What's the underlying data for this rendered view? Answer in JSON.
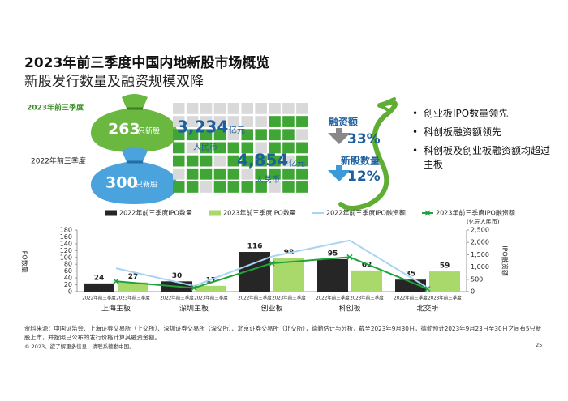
{
  "title": "2023年前三季度中国内地新股市场概览",
  "subtitle": "新股发行数量及融资规模双降",
  "infographic": {
    "period_2023": "2023年前三季度",
    "period_2022": "2022年前三季度",
    "count_2023": "263",
    "count_2022": "300",
    "count_unit": "只新股",
    "amount_2023": "3,234",
    "amount_2022": "4,854",
    "amount_unit": "亿元",
    "currency": "人民币",
    "amount_change_label": "融资额",
    "amount_change": "33%",
    "count_change_label": "新股数量",
    "count_change": "12%"
  },
  "highlights": [
    "创业板IPO数量领先",
    "科创板融资额领先",
    "科创板及创业板融资额均超过主板"
  ],
  "chart_data": {
    "type": "bar-line",
    "categories": [
      "上海主板",
      "深圳主板",
      "创业板",
      "科创板",
      "北交所"
    ],
    "period_labels": [
      "2022年前三季度",
      "2023年前三季度"
    ],
    "series": [
      {
        "name": "2022年前三季度IPO数量",
        "type": "bar",
        "color": "#262626",
        "values": [
          24,
          30,
          116,
          95,
          35
        ]
      },
      {
        "name": "2023年前三季度IPO数量",
        "type": "bar",
        "color": "#a9d96a",
        "values": [
          27,
          17,
          98,
          62,
          59
        ]
      },
      {
        "name": "2022年前三季度IPO融资额",
        "type": "line",
        "axis": "y2",
        "color": "#a9d3f2",
        "values": [
          950,
          230,
          1430,
          2080,
          160
        ]
      },
      {
        "name": "2023年前三季度IPO融资额",
        "type": "line",
        "axis": "y2",
        "color": "#1fa23c",
        "marker": "x",
        "values": [
          420,
          150,
          1150,
          1400,
          110
        ]
      }
    ],
    "ylabel": "IPO数量",
    "y2label": "IPO融资额",
    "y2unit": "(亿元人民币)",
    "ylim": [
      0,
      180
    ],
    "yticks": [
      0,
      20,
      40,
      60,
      80,
      100,
      120,
      140,
      160,
      180
    ],
    "y2lim": [
      0,
      2500
    ],
    "y2ticks": [
      0,
      500,
      {
        "value": 1000,
        "label": "1,000"
      },
      {
        "value": 1500,
        "label": "1,500"
      },
      {
        "value": 2000,
        "label": "2,000"
      },
      {
        "value": 2500,
        "label": "2,500"
      }
    ],
    "legend": "top"
  },
  "footnote": "资料来源：中国证监会、上海证券交易所（上交所）、深圳证券交易所（深交所）、北京证券交易所（北交所），德勤估计与分析，截至2023年9月30日，德勤预计2023年9月23日至30日之间有5只新股上市，并按照已公布的发行价格计算其融资金额。",
  "copyright": "© 2023。欲了解更多信息，请联系德勤中国。",
  "page_number": "25"
}
